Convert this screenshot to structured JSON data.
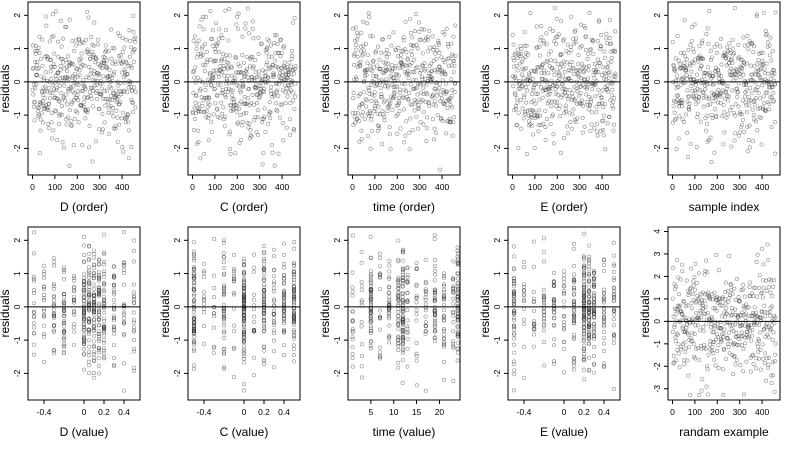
{
  "figure": {
    "background": "#ffffff",
    "point_color": "#333333",
    "ref_line_color": "#000000"
  },
  "chart_data": [
    {
      "type": "scatter",
      "row": 0,
      "col": 0,
      "xlabel": "D (order)",
      "ylabel": "residuals",
      "xlim": [
        -20,
        480
      ],
      "ylim": [
        -2.8,
        2.4
      ],
      "xticks": [
        0,
        100,
        200,
        300,
        400
      ],
      "xtick_labels": [
        "0",
        "100",
        "200",
        "300",
        "400"
      ],
      "yticks": [
        -2,
        -1,
        0,
        1,
        2
      ],
      "ytick_labels": [
        "-2",
        "-1",
        "0",
        "1",
        "2"
      ],
      "hline": 0,
      "n_points": 460,
      "x_kind": "index",
      "y_sd": 0.85,
      "seed": 11
    },
    {
      "type": "scatter",
      "row": 0,
      "col": 1,
      "xlabel": "C (order)",
      "ylabel": "residuals",
      "xlim": [
        -20,
        480
      ],
      "ylim": [
        -2.8,
        2.4
      ],
      "xticks": [
        0,
        100,
        200,
        300,
        400
      ],
      "xtick_labels": [
        "0",
        "100",
        "200",
        "300",
        "400"
      ],
      "yticks": [
        -2,
        -1,
        0,
        1,
        2
      ],
      "ytick_labels": [
        "-2",
        "-1",
        "0",
        "1",
        "2"
      ],
      "hline": 0,
      "n_points": 460,
      "x_kind": "index",
      "y_sd": 0.85,
      "seed": 23
    },
    {
      "type": "scatter",
      "row": 0,
      "col": 2,
      "xlabel": "time (order)",
      "ylabel": "residuals",
      "xlim": [
        -20,
        480
      ],
      "ylim": [
        -2.8,
        2.4
      ],
      "xticks": [
        0,
        100,
        200,
        300,
        400
      ],
      "xtick_labels": [
        "0",
        "100",
        "200",
        "300",
        "400"
      ],
      "yticks": [
        -2,
        -1,
        0,
        1,
        2
      ],
      "ytick_labels": [
        "-2",
        "-1",
        "0",
        "1",
        "2"
      ],
      "hline": 0,
      "n_points": 460,
      "x_kind": "index",
      "y_sd": 0.85,
      "seed": 37
    },
    {
      "type": "scatter",
      "row": 0,
      "col": 3,
      "xlabel": "E (order)",
      "ylabel": "residuals",
      "xlim": [
        -20,
        480
      ],
      "ylim": [
        -2.8,
        2.4
      ],
      "xticks": [
        0,
        100,
        200,
        300,
        400
      ],
      "xtick_labels": [
        "0",
        "100",
        "200",
        "300",
        "400"
      ],
      "yticks": [
        -2,
        -1,
        0,
        1,
        2
      ],
      "ytick_labels": [
        "-2",
        "-1",
        "0",
        "1",
        "2"
      ],
      "hline": 0,
      "n_points": 460,
      "x_kind": "index",
      "y_sd": 0.85,
      "seed": 41
    },
    {
      "type": "scatter",
      "row": 0,
      "col": 4,
      "xlabel": "sample index",
      "ylabel": "residuals",
      "xlim": [
        -20,
        480
      ],
      "ylim": [
        -2.8,
        2.4
      ],
      "xticks": [
        0,
        100,
        200,
        300,
        400
      ],
      "xtick_labels": [
        "0",
        "100",
        "200",
        "300",
        "400"
      ],
      "yticks": [
        -2,
        -1,
        0,
        1,
        2
      ],
      "ytick_labels": [
        "-2",
        "-1",
        "0",
        "1",
        "2"
      ],
      "hline": 0,
      "n_points": 460,
      "x_kind": "index",
      "y_sd": 0.85,
      "seed": 53
    },
    {
      "type": "scatter",
      "row": 1,
      "col": 0,
      "xlabel": "D (value)",
      "ylabel": "residuals",
      "xlim": [
        -0.56,
        0.56
      ],
      "ylim": [
        -2.8,
        2.4
      ],
      "xticks": [
        -0.4,
        0,
        0.2,
        0.4
      ],
      "xtick_labels": [
        "-0.4",
        "0",
        "0.2",
        "0.4"
      ],
      "yticks": [
        -2,
        -1,
        0,
        1,
        2
      ],
      "ytick_labels": [
        "-2",
        "-1",
        "0",
        "1",
        "2"
      ],
      "hline": 0,
      "n_points": 460,
      "x_kind": "discrete",
      "x_levels": [
        -0.5,
        -0.4,
        -0.3,
        -0.2,
        -0.1,
        0,
        0.05,
        0.1,
        0.15,
        0.2,
        0.3,
        0.4,
        0.5
      ],
      "level_weights": [
        1,
        1,
        1,
        2,
        1,
        2,
        2,
        4,
        2,
        2,
        1,
        1,
        1
      ],
      "y_sd": 0.85,
      "seed": 61
    },
    {
      "type": "scatter",
      "row": 1,
      "col": 1,
      "xlabel": "C (value)",
      "ylabel": "residuals",
      "xlim": [
        -0.56,
        0.56
      ],
      "ylim": [
        -2.8,
        2.4
      ],
      "xticks": [
        -0.4,
        0,
        0.2,
        0.4
      ],
      "xtick_labels": [
        "-0.4",
        "0",
        "0.2",
        "0.4"
      ],
      "yticks": [
        -2,
        -1,
        0,
        1,
        2
      ],
      "ytick_labels": [
        "-2",
        "-1",
        "0",
        "1",
        "2"
      ],
      "hline": 0,
      "n_points": 460,
      "x_kind": "discrete",
      "x_levels": [
        -0.5,
        -0.4,
        -0.3,
        -0.2,
        -0.1,
        0,
        0.1,
        0.2,
        0.3,
        0.4,
        0.5
      ],
      "level_weights": [
        3,
        1,
        1,
        2,
        1,
        4,
        1,
        2,
        1,
        2,
        3
      ],
      "y_sd": 0.85,
      "seed": 71
    },
    {
      "type": "scatter",
      "row": 1,
      "col": 2,
      "xlabel": "time (value)",
      "ylabel": "residuals",
      "xlim": [
        0,
        24.5
      ],
      "ylim": [
        -2.8,
        2.4
      ],
      "xticks": [
        5,
        10,
        15,
        20
      ],
      "xtick_labels": [
        "5",
        "10",
        "15",
        "20"
      ],
      "yticks": [
        -2,
        -1,
        0,
        1,
        2
      ],
      "ytick_labels": [
        "-2",
        "-1",
        "0",
        "1",
        "2"
      ],
      "hline": 0,
      "n_points": 460,
      "x_kind": "discrete",
      "x_levels": [
        1,
        3,
        5,
        7,
        9,
        11,
        12,
        13,
        15,
        17,
        19,
        21,
        23,
        24
      ],
      "level_weights": [
        1,
        1,
        3,
        1,
        2,
        2,
        3,
        1,
        1,
        1,
        2,
        1,
        1,
        3
      ],
      "y_sd": 0.85,
      "seed": 83
    },
    {
      "type": "scatter",
      "row": 1,
      "col": 3,
      "xlabel": "E (value)",
      "ylabel": "residuals",
      "xlim": [
        -0.56,
        0.56
      ],
      "ylim": [
        -2.8,
        2.4
      ],
      "xticks": [
        -0.4,
        0,
        0.2,
        0.4
      ],
      "xtick_labels": [
        "-0.4",
        "0",
        "0.2",
        "0.4"
      ],
      "yticks": [
        -2,
        -1,
        0,
        1,
        2
      ],
      "ytick_labels": [
        "-2",
        "-1",
        "0",
        "1",
        "2"
      ],
      "hline": 0,
      "n_points": 460,
      "x_kind": "discrete",
      "x_levels": [
        -0.5,
        -0.4,
        -0.3,
        -0.2,
        -0.1,
        0,
        0.1,
        0.2,
        0.25,
        0.3,
        0.4,
        0.5
      ],
      "level_weights": [
        2,
        1,
        1,
        1,
        1,
        1,
        2,
        4,
        3,
        2,
        1,
        1
      ],
      "y_sd": 0.85,
      "seed": 97
    },
    {
      "type": "scatter",
      "row": 1,
      "col": 4,
      "xlabel": "randam example",
      "ylabel": "residuals",
      "xlim": [
        -20,
        480
      ],
      "ylim": [
        -3.5,
        4.2
      ],
      "xticks": [
        0,
        100,
        200,
        300,
        400
      ],
      "xtick_labels": [
        "0",
        "100",
        "200",
        "300",
        "400"
      ],
      "yticks": [
        -3,
        -2,
        -1,
        0,
        1,
        2,
        3,
        4
      ],
      "ytick_labels": [
        "-3",
        "-2",
        "-1",
        "0",
        "1",
        "2",
        "3",
        "4"
      ],
      "hline": 0,
      "n_points": 460,
      "x_kind": "index",
      "y_sd": 1.25,
      "seed": 109
    }
  ]
}
